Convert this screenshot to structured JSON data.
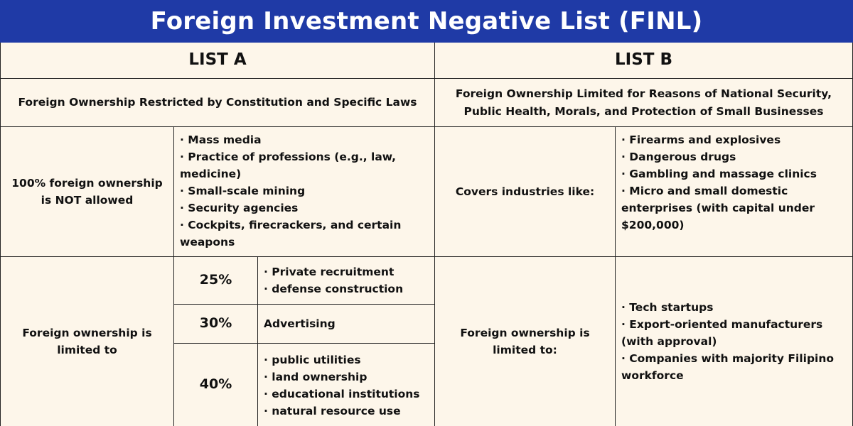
{
  "title": "Foreign Investment Negative List (FINL)",
  "list_a": {
    "header": "LIST A",
    "description": "Foreign Ownership Restricted by Constitution and Specific Laws",
    "row1_label": "100% foreign ownership is NOT allowed",
    "row1_items": [
      "Mass media",
      "Practice of professions (e.g., law, medicine)",
      "Small-scale mining",
      "Security agencies",
      "Cockpits, firecrackers, and certain weapons"
    ],
    "row2_label": "Foreign ownership is limited to",
    "tiers": [
      {
        "percent": "25%",
        "items": [
          "Private recruitment",
          "defense construction"
        ]
      },
      {
        "percent": "30%",
        "text": "Advertising"
      },
      {
        "percent": "40%",
        "items": [
          "public utilities",
          "land ownership",
          "educational institutions",
          "natural resource use"
        ]
      }
    ]
  },
  "list_b": {
    "header": "LIST B",
    "description": "Foreign Ownership Limited for Reasons of National Security, Public Health, Morals, and Protection of Small Businesses",
    "row1_label": "Covers industries like:",
    "row1_items": [
      "Firearms and explosives",
      "Dangerous drugs",
      "Gambling and massage clinics",
      "Micro and small domestic enterprises (with capital under $200,000)"
    ],
    "row2_label": "Foreign ownership is limited to:",
    "row2_items": [
      "Tech startups",
      "Export-oriented manufacturers (with approval)",
      "Companies with majority Filipino workforce"
    ]
  },
  "colors": {
    "banner": "#1f3aa6",
    "background": "#fdf6ea",
    "border": "#222222"
  }
}
